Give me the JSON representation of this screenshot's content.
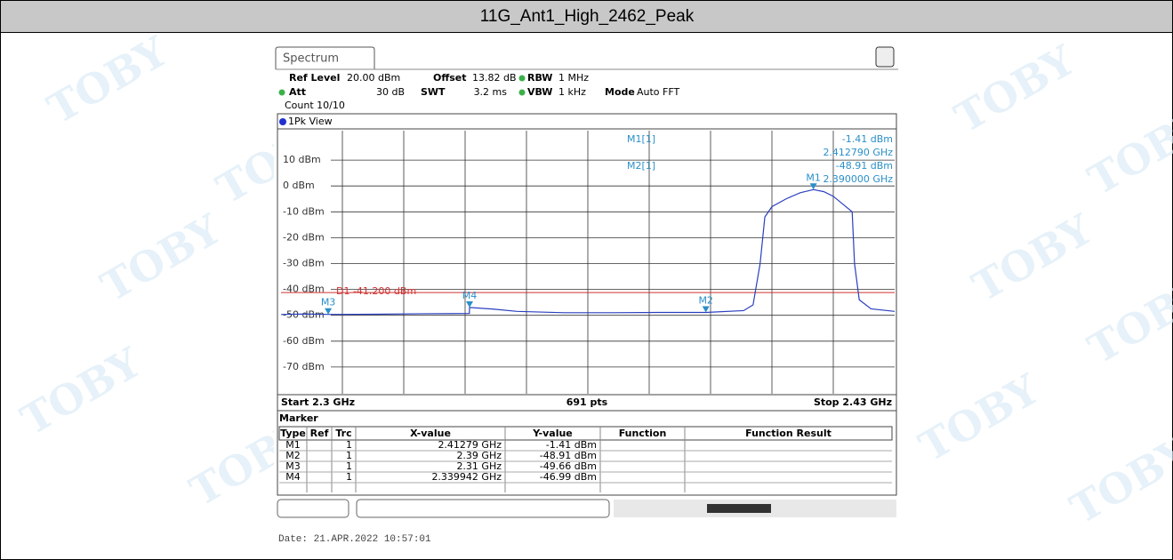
{
  "header": {
    "title": "11G_Ant1_High_2462_Peak"
  },
  "watermark": "TOBY",
  "instrument": {
    "tab": "Spectrum",
    "settings": [
      [
        "Ref Level",
        "20.00 dBm"
      ],
      [
        "Offset",
        "13.82 dB"
      ],
      [
        "RBW",
        "1 MHz"
      ],
      [
        "Att",
        "30 dB"
      ],
      [
        "SWT",
        "3.2 ms"
      ],
      [
        "VBW",
        "1 kHz"
      ],
      [
        "Mode",
        "Auto FFT"
      ]
    ],
    "count": "Count 10/10",
    "view": "1Pk View",
    "readout": [
      [
        "M1[1]",
        "-1.41 dBm",
        "2.412790 GHz"
      ],
      [
        "M2[1]",
        "-48.91 dBm",
        "2.390000 GHz"
      ]
    ],
    "start": "Start 2.3 GHz",
    "points": "691 pts",
    "stop": "Stop 2.43 GHz",
    "marker_title": "Marker",
    "table": {
      "columns": [
        "Type",
        "Ref",
        "Trc",
        "X-value",
        "Y-value",
        "Function",
        "Function Result"
      ],
      "rows": [
        [
          "M1",
          "",
          "1",
          "2.41279 GHz",
          "-1.41 dBm",
          "",
          ""
        ],
        [
          "M2",
          "",
          "1",
          "2.39 GHz",
          "-48.91 dBm",
          "",
          ""
        ],
        [
          "M3",
          "",
          "1",
          "2.31 GHz",
          "-49.66 dBm",
          "",
          ""
        ],
        [
          "M4",
          "",
          "1",
          "2.339942 GHz",
          "-46.99 dBm",
          "",
          ""
        ]
      ]
    },
    "date": "Date: 21.APR.2022  10:57:01"
  },
  "chart_data": {
    "type": "line",
    "color": "#2a3fbf",
    "x": [
      2.3,
      2.305,
      2.31,
      2.32,
      2.33,
      2.3399,
      2.339942,
      2.345,
      2.35,
      2.36,
      2.37,
      2.38,
      2.39,
      2.398,
      2.4,
      2.4015,
      2.4025,
      2.404,
      2.407,
      2.41,
      2.41279,
      2.415,
      2.417,
      2.419,
      2.421,
      2.4215,
      2.4225,
      2.425,
      2.43
    ],
    "values": [
      -49.7,
      -49.5,
      -49.66,
      -49.6,
      -49.4,
      -49.3,
      -46.99,
      -47.6,
      -48.5,
      -49.0,
      -49.0,
      -48.9,
      -48.91,
      -48.2,
      -46,
      -30,
      -12,
      -8,
      -5,
      -2.6,
      -1.41,
      -2.2,
      -4,
      -7,
      -10,
      -30,
      -44,
      -47.5,
      -48.5
    ],
    "xlim": [
      2.3,
      2.43
    ],
    "ylim": [
      -80,
      20
    ],
    "yticks": [
      {
        "value": 10,
        "label": "10 dBm"
      },
      {
        "value": 0,
        "label": "0 dBm"
      },
      {
        "value": -10,
        "label": "-10 dBm"
      },
      {
        "value": -20,
        "label": "-20 dBm"
      },
      {
        "value": -30,
        "label": "-30 dBm"
      },
      {
        "value": -40,
        "label": "-40 dBm"
      },
      {
        "value": -50,
        "label": "-50 dBm"
      },
      {
        "value": -60,
        "label": "-60 dBm"
      },
      {
        "value": -70,
        "label": "-70 dBm"
      }
    ],
    "display_line": {
      "value": -41.2,
      "label": "D1 -41.200 dBm",
      "color": "#d03030"
    },
    "markers": [
      {
        "name": "M1",
        "x": 2.41279,
        "value": -1.41
      },
      {
        "name": "M2",
        "x": 2.39,
        "value": -48.91
      },
      {
        "name": "M3",
        "x": 2.31,
        "value": -49.66
      },
      {
        "name": "M4",
        "x": 2.339942,
        "value": -46.99
      }
    ],
    "marker_color": "#2a8fc9"
  }
}
